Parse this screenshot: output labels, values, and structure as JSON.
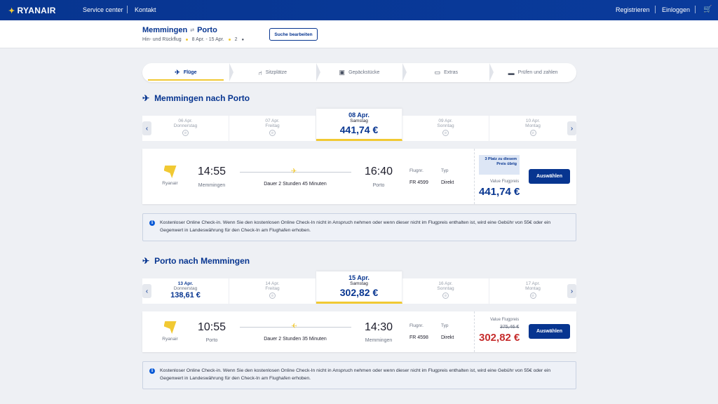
{
  "header": {
    "logo": "RYANAIR",
    "nav": [
      "Service center",
      "Kontakt"
    ],
    "right_nav": [
      "Registrieren",
      "Einloggen"
    ],
    "cart_icon": "cart-icon"
  },
  "search": {
    "origin": "Memmingen",
    "destination": "Porto",
    "trip_type": "Hin- und Rückflug",
    "dates": "8 Apr. - 15 Apr.",
    "passengers": "2",
    "edit_label": "Suche bearbeiten"
  },
  "steps": [
    {
      "label": "Flüge",
      "icon": "plane-icon",
      "active": true
    },
    {
      "label": "Sitzplätze",
      "icon": "seat-icon",
      "active": false
    },
    {
      "label": "Gepäckstücke",
      "icon": "luggage-icon",
      "active": false
    },
    {
      "label": "Extras",
      "icon": "extras-icon",
      "active": false
    },
    {
      "label": "Prüfen und zahlen",
      "icon": "card-icon",
      "active": false
    }
  ],
  "outbound": {
    "title": "Memmingen nach Porto",
    "dates": [
      {
        "date": "06 Apr.",
        "day": "Donnerstag",
        "price": ""
      },
      {
        "date": "07 Apr.",
        "day": "Freitag",
        "price": ""
      },
      {
        "date": "08 Apr.",
        "day": "Samstag",
        "price": "441,74 €"
      },
      {
        "date": "09 Apr.",
        "day": "Sonntag",
        "price": ""
      },
      {
        "date": "10 Apr.",
        "day": "Montag",
        "price": ""
      }
    ],
    "flight": {
      "airline": "Ryanair",
      "dep_time": "14:55",
      "dep_city": "Memmingen",
      "duration": "Dauer 2 Stunden 45 Minuten",
      "arr_time": "16:40",
      "arr_city": "Porto",
      "flight_no_label": "Flugnr.",
      "flight_no": "FR 4599",
      "type_label": "Typ",
      "type": "Direkt",
      "seats_left": "3 Platz zu diesem Preis übrig",
      "fare_label": "Value Flugpreis",
      "fare": "441,74 €",
      "select_label": "Auswählen"
    },
    "info": "Kostenloser Online Check-in. Wenn Sie den kostenlosen Online Check-In nicht in Anspruch nehmen oder wenn dieser nicht im Flugpreis enthalten ist, wird eine Gebühr von 55€ oder ein Gegenwert in Landeswährung für den Check-In am Flughafen erhoben."
  },
  "inbound": {
    "title": "Porto nach Memmingen",
    "dates": [
      {
        "date": "13 Apr.",
        "day": "Donnerstag",
        "price": "138,61 €"
      },
      {
        "date": "14 Apr.",
        "day": "Freitag",
        "price": ""
      },
      {
        "date": "15 Apr.",
        "day": "Samstag",
        "price": "302,82 €"
      },
      {
        "date": "16 Apr.",
        "day": "Sonntag",
        "price": ""
      },
      {
        "date": "17 Apr.",
        "day": "Montag",
        "price": ""
      }
    ],
    "flight": {
      "airline": "Ryanair",
      "dep_time": "10:55",
      "dep_city": "Porto",
      "duration": "Dauer 2 Stunden 35 Minuten",
      "arr_time": "14:30",
      "arr_city": "Memmingen",
      "flight_no_label": "Flugnr.",
      "flight_no": "FR 4598",
      "type_label": "Typ",
      "type": "Direkt",
      "fare_label": "Value Flugpreis",
      "old_fare": "375,46 €",
      "fare": "302,82 €",
      "select_label": "Auswählen"
    },
    "info": "Kostenloser Online Check-in. Wenn Sie den kostenlosen Online Check-In nicht in Anspruch nehmen oder wenn dieser nicht im Flugpreis enthalten ist, wird eine Gebühr von 55€ oder ein Gegenwert in Landeswährung für den Check-In am Flughafen erhoben."
  },
  "colors": {
    "brand": "#073590",
    "accent": "#f1c933",
    "sale": "#c62d2d"
  }
}
